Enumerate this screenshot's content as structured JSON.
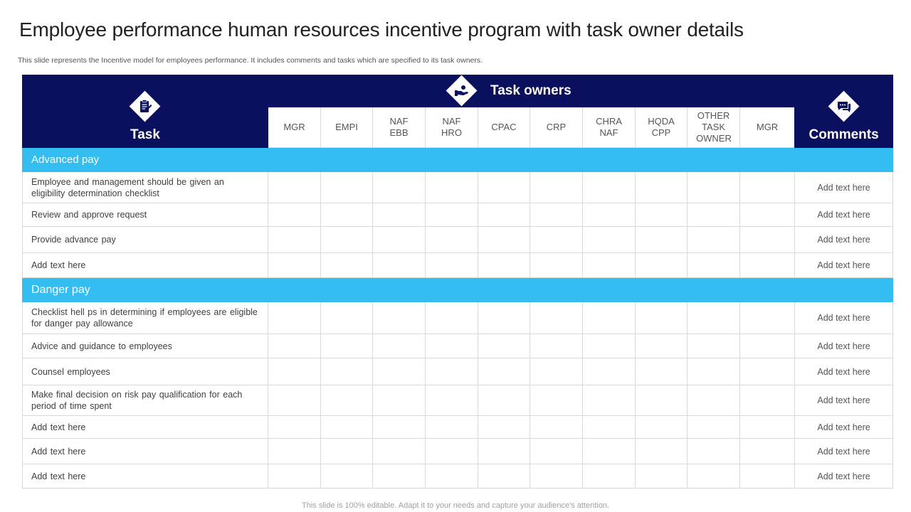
{
  "title": "Employee performance human resources incentive program with task owner details",
  "subtitle": "This slide represents the Incentive model for employees performance. It includes comments and tasks which are specified to its task owners.",
  "footer": "This slide is 100% editable. Adapt it to your needs and capture your audience's attention.",
  "table": {
    "task_header": "Task",
    "owners_header": "Task owners",
    "comments_header": "Comments",
    "owners": [
      "MGR",
      "EMPI",
      "NAF EBB",
      "NAF HRO",
      "CPAC",
      "CRP",
      "CHRA NAF",
      "HQDA CPP",
      "OTHER TASK OWNER",
      "MGR"
    ],
    "colors": {
      "header": "#0a0f5e",
      "section": "#33bdf0"
    },
    "sections": [
      {
        "name": "Advanced pay",
        "rows": [
          {
            "task": "Employee and management should be given an eligibility determination checklist",
            "comment": "Add text here"
          },
          {
            "task": "Review and approve request",
            "comment": "Add text here"
          },
          {
            "task": "Provide advance pay",
            "comment": "Add text here"
          },
          {
            "task": "Add text here",
            "comment": "Add text here"
          }
        ]
      },
      {
        "name": "Danger pay",
        "rows": [
          {
            "task": "Checklist hell ps in determining if employees are eligible for danger pay allowance",
            "comment": "Add text here"
          },
          {
            "task": "Advice and guidance to employees",
            "comment": "Add text here"
          },
          {
            "task": "Counsel employees",
            "comment": "Add text here"
          },
          {
            "task": "Make final decision on risk pay qualification for each period of time spent",
            "comment": "Add text here"
          },
          {
            "task": "Add text here",
            "comment": "Add text here"
          },
          {
            "task": "Add text here",
            "comment": "Add text here"
          },
          {
            "task": "Add text here",
            "comment": "Add text here"
          }
        ]
      }
    ]
  }
}
